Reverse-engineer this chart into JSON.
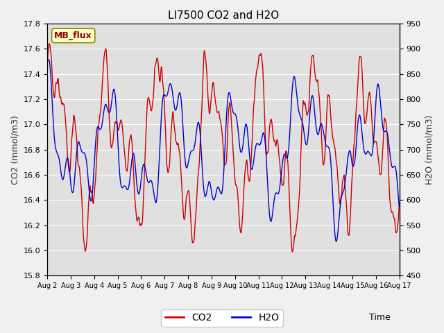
{
  "title": "LI7500 CO2 and H2O",
  "xlabel": "Time",
  "ylabel_left": "CO2 (mmol/m3)",
  "ylabel_right": "H2O (mmol/m3)",
  "ylim_left": [
    15.8,
    17.8
  ],
  "ylim_right": [
    450,
    950
  ],
  "xlim": [
    0,
    360
  ],
  "x_tick_labels": [
    "Aug 2",
    "Aug 3",
    "Aug 4",
    "Aug 5",
    "Aug 6",
    "Aug 7",
    "Aug 8",
    "Aug 9",
    "Aug 10",
    "Aug 11",
    "Aug 12",
    "Aug 13",
    "Aug 14",
    "Aug 15",
    "Aug 16",
    "Aug 17"
  ],
  "x_tick_positions": [
    0,
    24,
    48,
    72,
    96,
    120,
    144,
    168,
    192,
    216,
    240,
    264,
    288,
    312,
    336,
    360
  ],
  "label_box_text": "MB_flux",
  "legend_entries": [
    "CO2",
    "H2O"
  ],
  "co2_color": "#cc0000",
  "h2o_color": "#0000cc",
  "fig_bg_color": "#f0f0f0",
  "plot_bg_color": "#e0e0e0",
  "grid_color": "#ffffff",
  "co2_linewidth": 1.0,
  "h2o_linewidth": 1.0,
  "title_fontsize": 11,
  "axis_fontsize": 9,
  "tick_fontsize": 8,
  "xtick_fontsize": 7
}
